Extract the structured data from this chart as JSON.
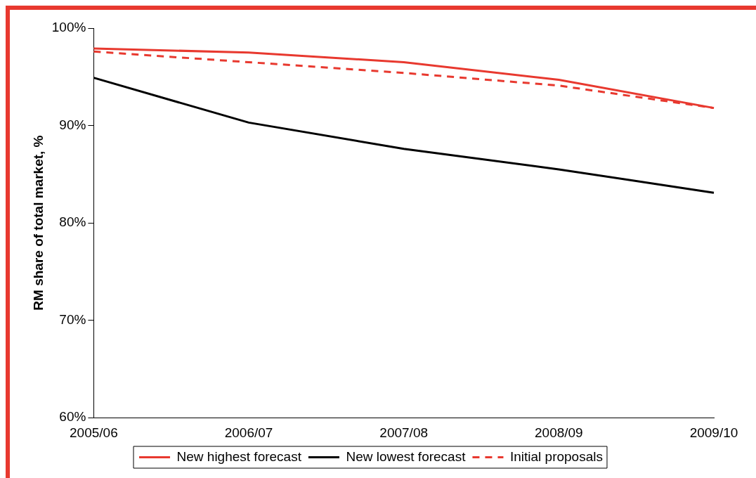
{
  "chart_data": {
    "type": "line",
    "ylabel": "RM share of total market, %",
    "categories": [
      "2005/06",
      "2006/07",
      "2007/08",
      "2008/09",
      "2009/10"
    ],
    "series": [
      {
        "name": "New highest forecast",
        "color": "#e8392f",
        "values": [
          97.9,
          97.5,
          96.5,
          94.7,
          91.8
        ],
        "line_style": "solid"
      },
      {
        "name": "New lowest forecast",
        "color": "#000000",
        "values": [
          94.9,
          90.3,
          87.6,
          85.5,
          83.1
        ],
        "line_style": "solid"
      },
      {
        "name": "Initial proposals",
        "color": "#e8392f",
        "values": [
          97.6,
          96.5,
          95.4,
          94.1,
          91.8
        ],
        "line_style": "dashed"
      }
    ],
    "ylim": [
      60,
      100
    ],
    "yticks": [
      {
        "value": 60,
        "label": "60%"
      },
      {
        "value": 70,
        "label": "70%"
      },
      {
        "value": 80,
        "label": "80%"
      },
      {
        "value": 90,
        "label": "90%"
      },
      {
        "value": 100,
        "label": "100%"
      }
    ],
    "grid": false,
    "legend": "bottom",
    "marker": "none"
  }
}
